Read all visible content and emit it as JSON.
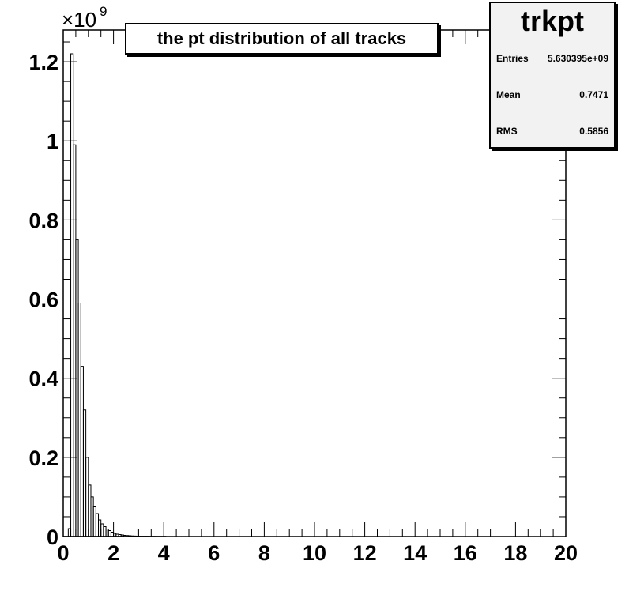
{
  "chart_data": {
    "type": "histogram",
    "title": "the pt distribution of all tracks",
    "xlabel": "",
    "ylabel": "",
    "xlim": [
      0,
      20
    ],
    "ylim": [
      0,
      1.28
    ],
    "y_multiplier_label": "×10",
    "y_multiplier_exponent": "9",
    "x_ticks": [
      "0",
      "2",
      "4",
      "6",
      "8",
      "10",
      "12",
      "14",
      "16",
      "18",
      "20"
    ],
    "y_ticks": [
      "0",
      "0.2",
      "0.4",
      "0.6",
      "0.8",
      "1",
      "1.2"
    ],
    "bin_width": 0.1,
    "bin_start": 0,
    "values": [
      0,
      0,
      0.02,
      1.22,
      0.99,
      0.75,
      0.59,
      0.43,
      0.32,
      0.2,
      0.13,
      0.1,
      0.075,
      0.058,
      0.042,
      0.032,
      0.025,
      0.019,
      0.015,
      0.011,
      0.008,
      0.006,
      0.005,
      0.004,
      0.003,
      0.0025,
      0.002,
      0.0016,
      0.0013,
      0.001,
      0.0008,
      0.0006,
      0.0005,
      0.0004,
      0.0003,
      0.0002,
      0.0002,
      0.0001,
      0.0001,
      0.0001,
      0
    ],
    "grid": false,
    "stats": {
      "name": "trkpt",
      "rows": [
        {
          "label": "Entries",
          "value": "5.630395e+09"
        },
        {
          "label": "Mean",
          "value": "0.7471"
        },
        {
          "label": "RMS",
          "value": "0.5856"
        }
      ]
    }
  }
}
